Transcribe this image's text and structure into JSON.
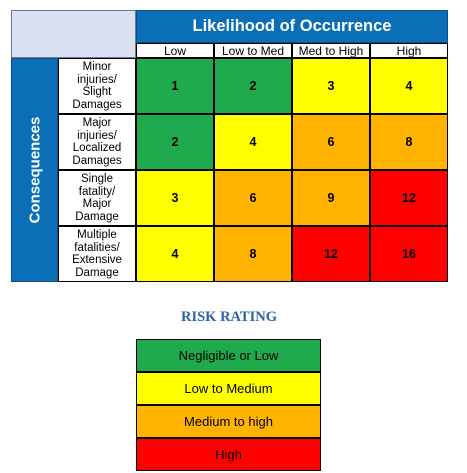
{
  "matrix": {
    "title": "Likelihood of Occurrence",
    "side_label": "Consequences",
    "columns": [
      "Low",
      "Low to Med",
      "Med to High",
      "High"
    ],
    "rows": [
      {
        "label": "Minor\ninjuries/\nSlight\nDamages",
        "values": [
          "1",
          "2",
          "3",
          "4"
        ],
        "levels": [
          "green",
          "green",
          "yellow",
          "yellow"
        ]
      },
      {
        "label": "Major\ninjuries/\nLocalized\nDamages",
        "values": [
          "2",
          "4",
          "6",
          "8"
        ],
        "levels": [
          "green",
          "yellow",
          "orange",
          "orange"
        ]
      },
      {
        "label": "Single\nfatality/\nMajor\nDamage",
        "values": [
          "3",
          "6",
          "9",
          "12"
        ],
        "levels": [
          "yellow",
          "orange",
          "orange",
          "red"
        ]
      },
      {
        "label": "Multiple\nfatalities/\nExtensive\nDamage",
        "values": [
          "4",
          "8",
          "12",
          "16"
        ],
        "levels": [
          "yellow",
          "orange",
          "red",
          "red"
        ]
      }
    ]
  },
  "legend": {
    "title": "RISK RATING",
    "items": [
      {
        "label": "Negligible or Low",
        "level": "green"
      },
      {
        "label": "Low to Medium",
        "level": "yellow"
      },
      {
        "label": "Medium to high",
        "level": "orange"
      },
      {
        "label": "High",
        "level": "red"
      }
    ]
  },
  "colors": {
    "green": "#1fab4d",
    "yellow": "#ffff00",
    "orange": "#ffb300",
    "red": "#ff0000",
    "header_blue": "#0b6fb8",
    "corner_blue": "#d9e1f2",
    "legend_title": "#2e63a6"
  }
}
